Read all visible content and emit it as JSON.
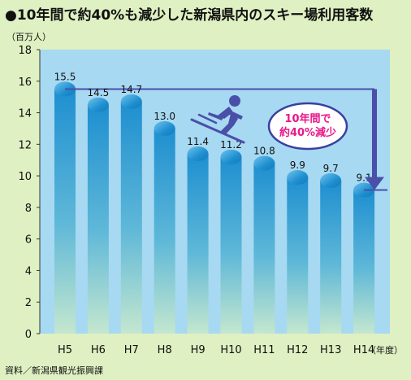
{
  "title": "10年間で約40%も減少した新潟県内のスキー場利用客数",
  "source": "資料／新潟県観光振興課",
  "annotation": "10年間で\n約40%減少",
  "colors": {
    "page_bg": "#dff0c2",
    "plot_bg": "#a7d9f2",
    "bar_top": "#1e8fd0",
    "bar_bottom": "#bfe4c9",
    "reference_line": "#4a4fa8",
    "annotation_text": "#e8188a",
    "annotation_border": "#3a3fa0",
    "skier": "#4a4fa8"
  },
  "chart_data": {
    "type": "bar",
    "categories": [
      "H5",
      "H6",
      "H7",
      "H8",
      "H9",
      "H10",
      "H11",
      "H12",
      "H13",
      "H14"
    ],
    "values": [
      15.5,
      14.5,
      14.7,
      13.0,
      11.4,
      11.2,
      10.8,
      9.9,
      9.7,
      9.1
    ],
    "value_labels": [
      "15.5",
      "14.5",
      "14.7",
      "13.0",
      "11.4",
      "11.2",
      "10.8",
      "9.9",
      "9.7",
      "9.1"
    ],
    "ylim": [
      0,
      18
    ],
    "yticks": [
      "0",
      "2",
      "4",
      "6",
      "8",
      "10",
      "12",
      "14",
      "16",
      "18"
    ],
    "yunit": "（百万人）",
    "xunit": "（年度）",
    "grid": false,
    "reference_lines": [
      15.5,
      9.1
    ]
  }
}
